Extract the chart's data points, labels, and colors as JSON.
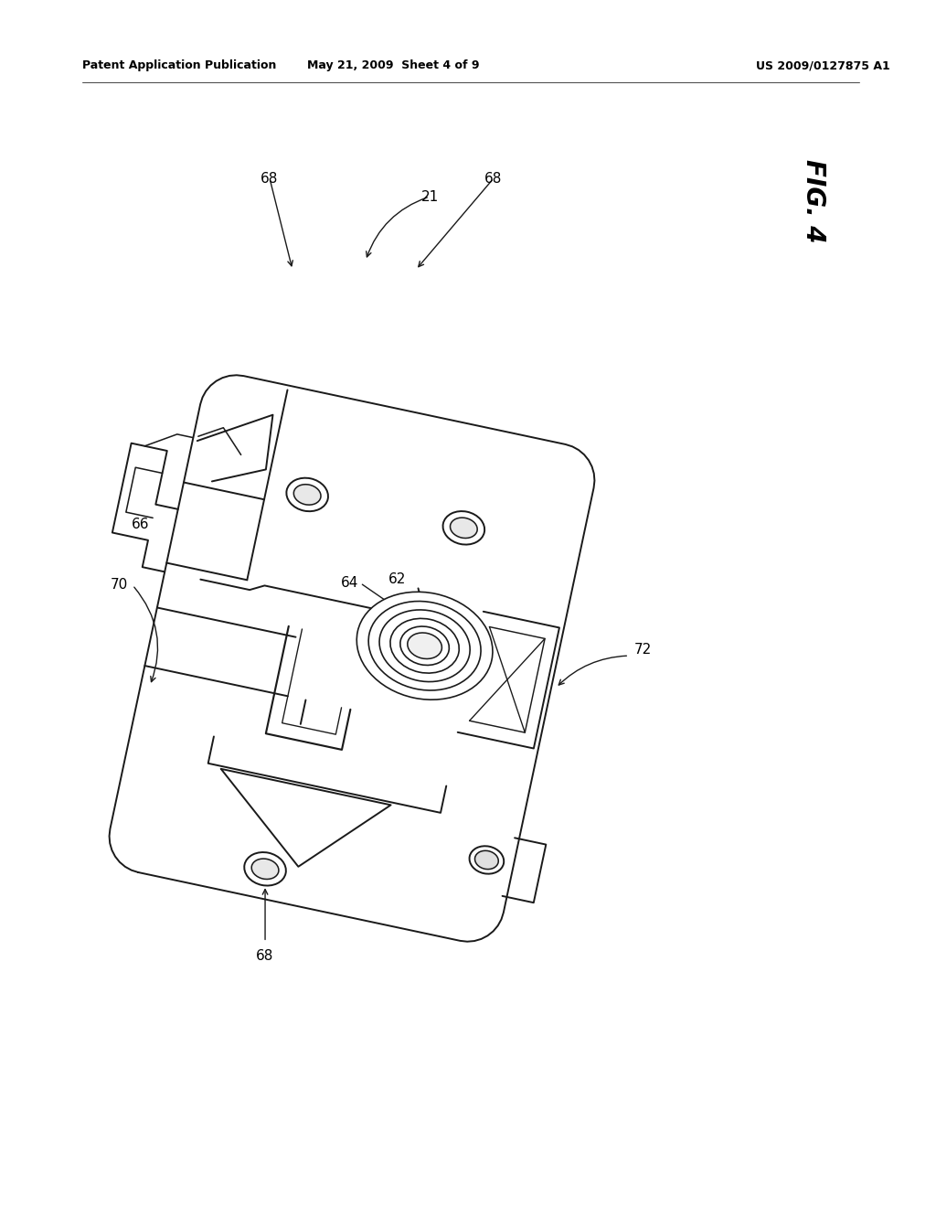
{
  "title_left": "Patent Application Publication",
  "title_mid": "May 21, 2009  Sheet 4 of 9",
  "title_right": "US 2009/0127875 A1",
  "fig_label": "FIG. 4",
  "background_color": "#ffffff",
  "line_color": "#1a1a1a",
  "line_width": 1.4,
  "header_fontsize": 9,
  "label_fontsize": 11,
  "fig4_fontsize": 20
}
